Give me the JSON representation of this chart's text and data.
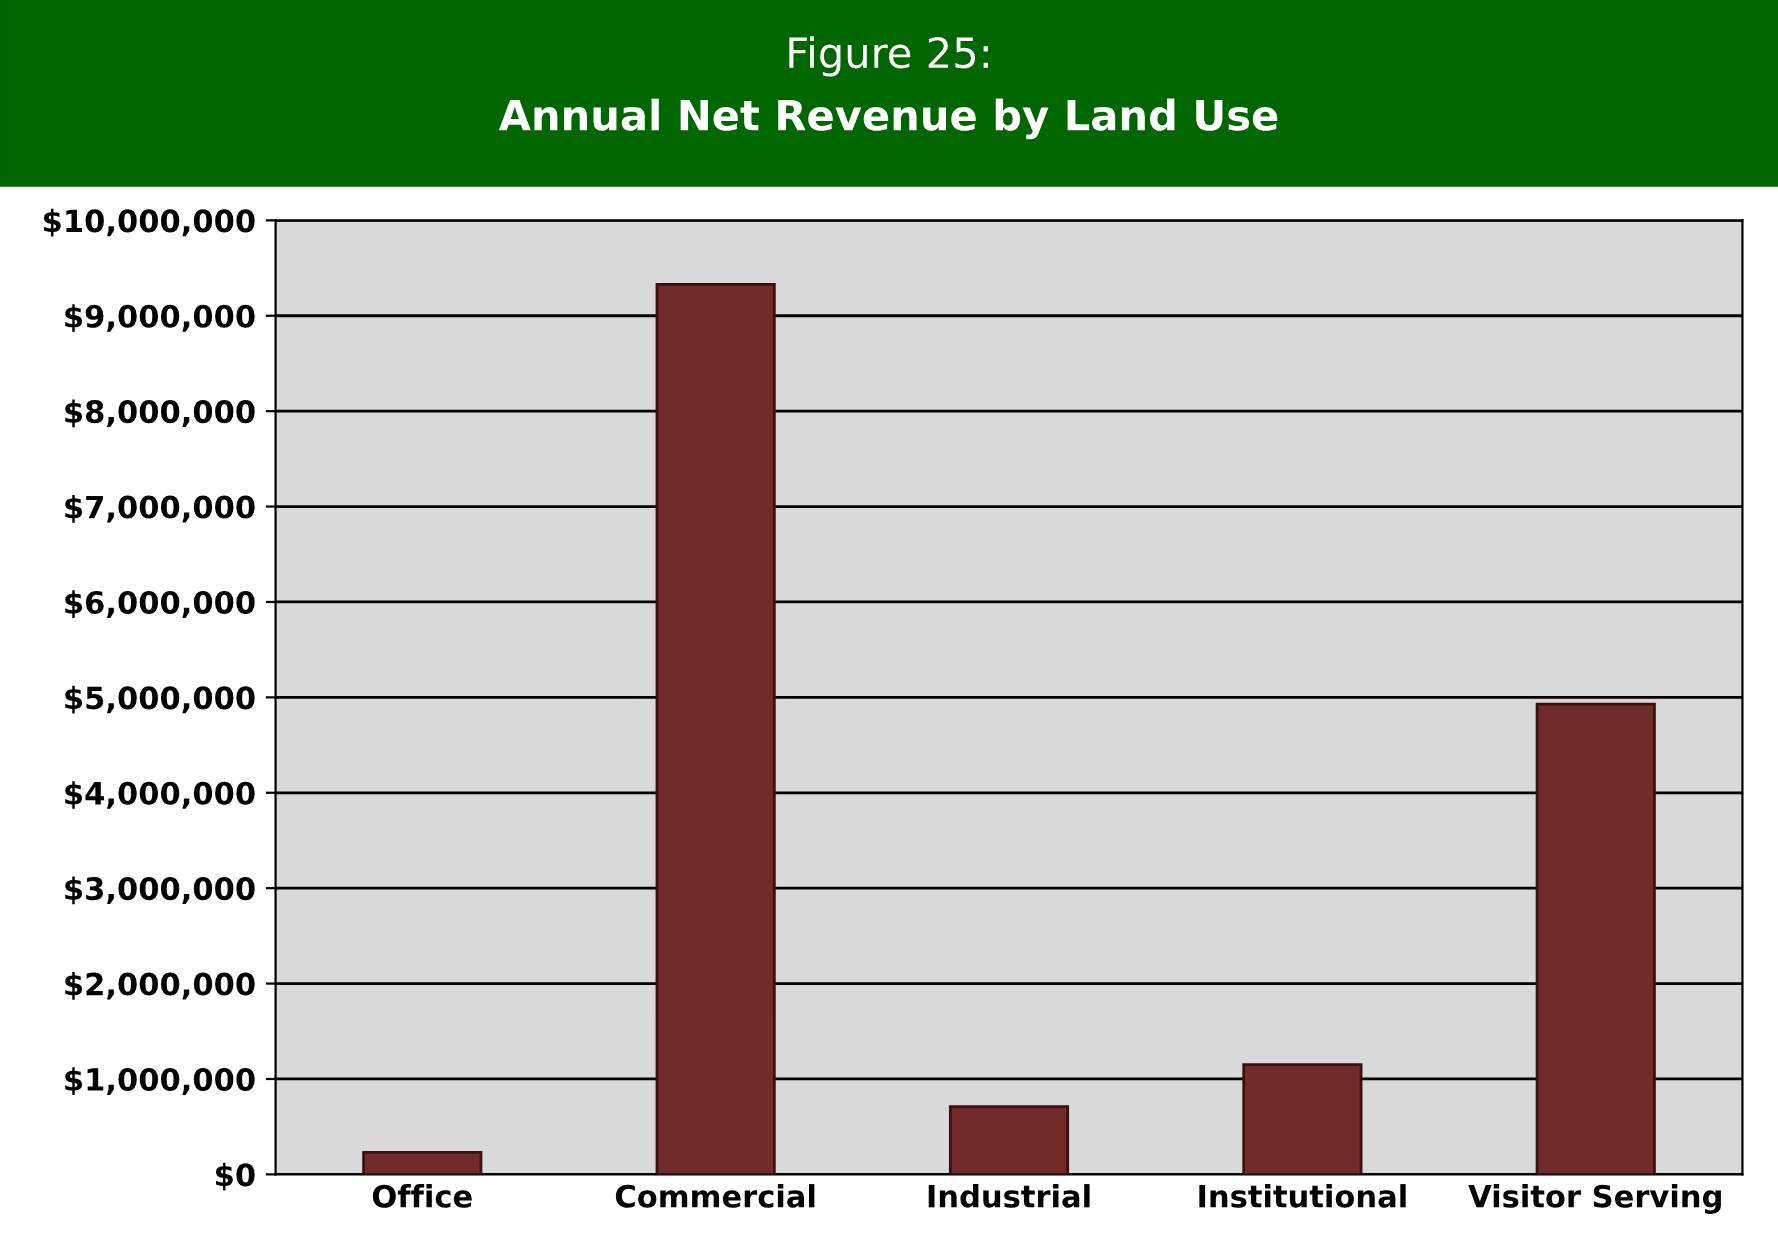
{
  "chart_data": {
    "type": "bar",
    "title": "Figure 25:",
    "subtitle": "Annual Net Revenue by Land Use",
    "categories": [
      "Office",
      "Commercial",
      "Industrial",
      "Institutional",
      "Visitor Serving"
    ],
    "values": [
      230000,
      9330000,
      710000,
      1150000,
      4930000
    ],
    "color": "#722b2b",
    "ylim": [
      0,
      10000000
    ],
    "yticks": [
      {
        "value": 0,
        "label": "$0"
      },
      {
        "value": 1000000,
        "label": "$1,000,000"
      },
      {
        "value": 2000000,
        "label": "$2,000,000"
      },
      {
        "value": 3000000,
        "label": "$3,000,000"
      },
      {
        "value": 4000000,
        "label": "$4,000,000"
      },
      {
        "value": 5000000,
        "label": "$5,000,000"
      },
      {
        "value": 6000000,
        "label": "$6,000,000"
      },
      {
        "value": 7000000,
        "label": "$7,000,000"
      },
      {
        "value": 8000000,
        "label": "$8,000,000"
      },
      {
        "value": 9000000,
        "label": "$9,000,000"
      },
      {
        "value": 10000000,
        "label": "$10,000,000"
      }
    ],
    "grid": "y"
  }
}
